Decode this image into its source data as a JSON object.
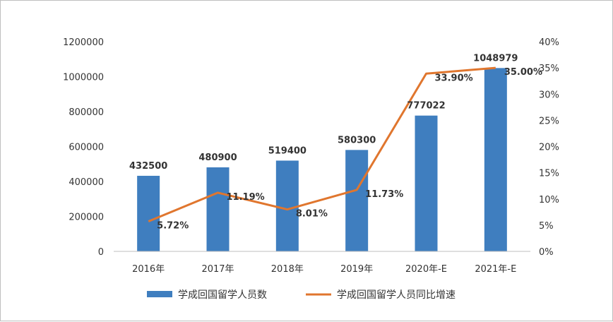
{
  "chart_data": {
    "type": "bar+line",
    "categories": [
      "2016年",
      "2017年",
      "2018年",
      "2019年",
      "2020年-E",
      "2021年-E"
    ],
    "series": [
      {
        "name": "学成回国留学人员数",
        "type": "bar",
        "axis": "left",
        "values": [
          432500,
          480900,
          519400,
          580300,
          777022,
          1048979
        ],
        "labels": [
          "432500",
          "480900",
          "519400",
          "580300",
          "777022",
          "1048979"
        ]
      },
      {
        "name": "学成回国留学人员同比增速",
        "type": "line",
        "axis": "right",
        "values": [
          5.72,
          11.19,
          8.01,
          11.73,
          33.9,
          35.0
        ],
        "labels": [
          "5.72%",
          "11.19%",
          "8.01%",
          "11.73%",
          "33.90%",
          "35.00%"
        ]
      }
    ],
    "y_left": {
      "lim": [
        0,
        1200000
      ],
      "ticks": [
        0,
        200000,
        400000,
        600000,
        800000,
        1000000,
        1200000
      ],
      "tick_labels": [
        "0",
        "200000",
        "400000",
        "600000",
        "800000",
        "1000000",
        "1200000"
      ]
    },
    "y_right": {
      "lim": [
        0,
        40
      ],
      "ticks": [
        0,
        5,
        10,
        15,
        20,
        25,
        30,
        35,
        40
      ],
      "tick_labels": [
        "0%",
        "5%",
        "10%",
        "15%",
        "20%",
        "25%",
        "30%",
        "35%",
        "40%"
      ]
    },
    "title": "",
    "xlabel": "",
    "ylabel": "",
    "grid": false,
    "legend_position": "bottom",
    "colors": {
      "bar": "#3f7ebf",
      "line": "#e0762e",
      "axis": "#bfbfbf"
    }
  }
}
